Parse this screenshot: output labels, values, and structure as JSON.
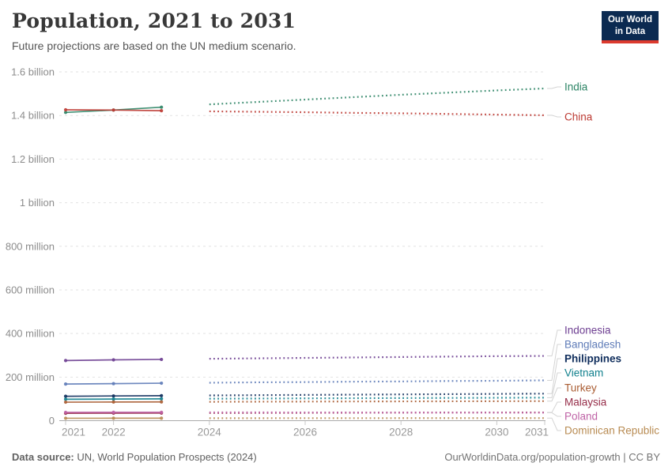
{
  "logo": {
    "line1": "Our World",
    "line2": "in Data"
  },
  "footer": {
    "source_label": "Data source:",
    "source_text": " UN, World Population Prospects (2024)",
    "credit": "OurWorldinData.org/population-growth | CC BY"
  },
  "chart_data": {
    "type": "line",
    "title": "Population, 2021 to 2031",
    "subtitle": "Future projections are based on the UN medium scenario.",
    "x": [
      2021,
      2022,
      2023,
      2024,
      2025,
      2026,
      2027,
      2028,
      2029,
      2030,
      2031
    ],
    "x_tick_labels": [
      "2021",
      "2022",
      "2024",
      "2026",
      "2028",
      "2030",
      "2031"
    ],
    "y_ticks": [
      {
        "value": 0,
        "label": "0"
      },
      {
        "value": 200,
        "label": "200 million"
      },
      {
        "value": 400,
        "label": "400 million"
      },
      {
        "value": 600,
        "label": "600 million"
      },
      {
        "value": 800,
        "label": "800 million"
      },
      {
        "value": 1000,
        "label": "1 billion"
      },
      {
        "value": 1200,
        "label": "1.2 billion"
      },
      {
        "value": 1400,
        "label": "1.4 billion"
      },
      {
        "value": 1600,
        "label": "1.6 billion"
      }
    ],
    "ylim": [
      0,
      1600
    ],
    "unit_of_values": "millions of people",
    "grid": "dashed-horizontal",
    "projection_start_year": 2024,
    "legend_position": "right-edge-labels",
    "series": [
      {
        "name": "India",
        "color": "#2C8465",
        "bold": false,
        "label_y": 110,
        "values": [
          1414,
          1425,
          1438,
          1451,
          1462,
          1473,
          1484,
          1495,
          1505,
          1515,
          1524
        ]
      },
      {
        "name": "China",
        "color": "#BC3A33",
        "bold": false,
        "label_y": 148,
        "values": [
          1426,
          1425,
          1422,
          1419,
          1417,
          1415,
          1412,
          1410,
          1407,
          1404,
          1401
        ]
      },
      {
        "name": "Indonesia",
        "color": "#6D3E91",
        "bold": false,
        "label_y": 418,
        "values": [
          276,
          279,
          281,
          284,
          286,
          288,
          290,
          292,
          294,
          296,
          297
        ]
      },
      {
        "name": "Bangladesh",
        "color": "#5F7CB8",
        "bold": false,
        "label_y": 436,
        "values": [
          168,
          170,
          172,
          174,
          176,
          177,
          179,
          180,
          182,
          183,
          185
        ]
      },
      {
        "name": "Philippines",
        "color": "#0F2D5C",
        "bold": true,
        "label_y": 454,
        "values": [
          112,
          113.4,
          114.6,
          115.8,
          117,
          118.2,
          119.4,
          120.5,
          121.7,
          122.8,
          124
        ]
      },
      {
        "name": "Vietnam",
        "color": "#11808D",
        "bold": false,
        "label_y": 472,
        "values": [
          98.2,
          99.1,
          100,
          100.8,
          101.6,
          102.4,
          103.1,
          103.8,
          104.4,
          105,
          105.6
        ]
      },
      {
        "name": "Turkey",
        "color": "#AA5D33",
        "bold": false,
        "label_y": 491,
        "values": [
          85,
          85.5,
          86.1,
          86.6,
          87.1,
          87.6,
          88.1,
          88.5,
          88.9,
          89.3,
          89.7
        ]
      },
      {
        "name": "Malaysia",
        "color": "#962D49",
        "bold": false,
        "label_y": 509,
        "values": [
          33.9,
          34.3,
          34.7,
          35.1,
          35.5,
          35.9,
          36.3,
          36.7,
          37.1,
          37.4,
          37.8
        ]
      },
      {
        "name": "Poland",
        "color": "#BF63A6",
        "bold": false,
        "label_y": 527,
        "values": [
          38.3,
          38.6,
          38.5,
          38.2,
          38,
          37.8,
          37.5,
          37.3,
          37.1,
          36.8,
          36.6
        ]
      },
      {
        "name": "Dominican Republic",
        "color": "#B88B52",
        "bold": false,
        "label_y": 545,
        "values": [
          11.1,
          11.2,
          11.3,
          11.4,
          11.45,
          11.5,
          11.6,
          11.65,
          11.7,
          11.8,
          11.85
        ]
      }
    ]
  }
}
